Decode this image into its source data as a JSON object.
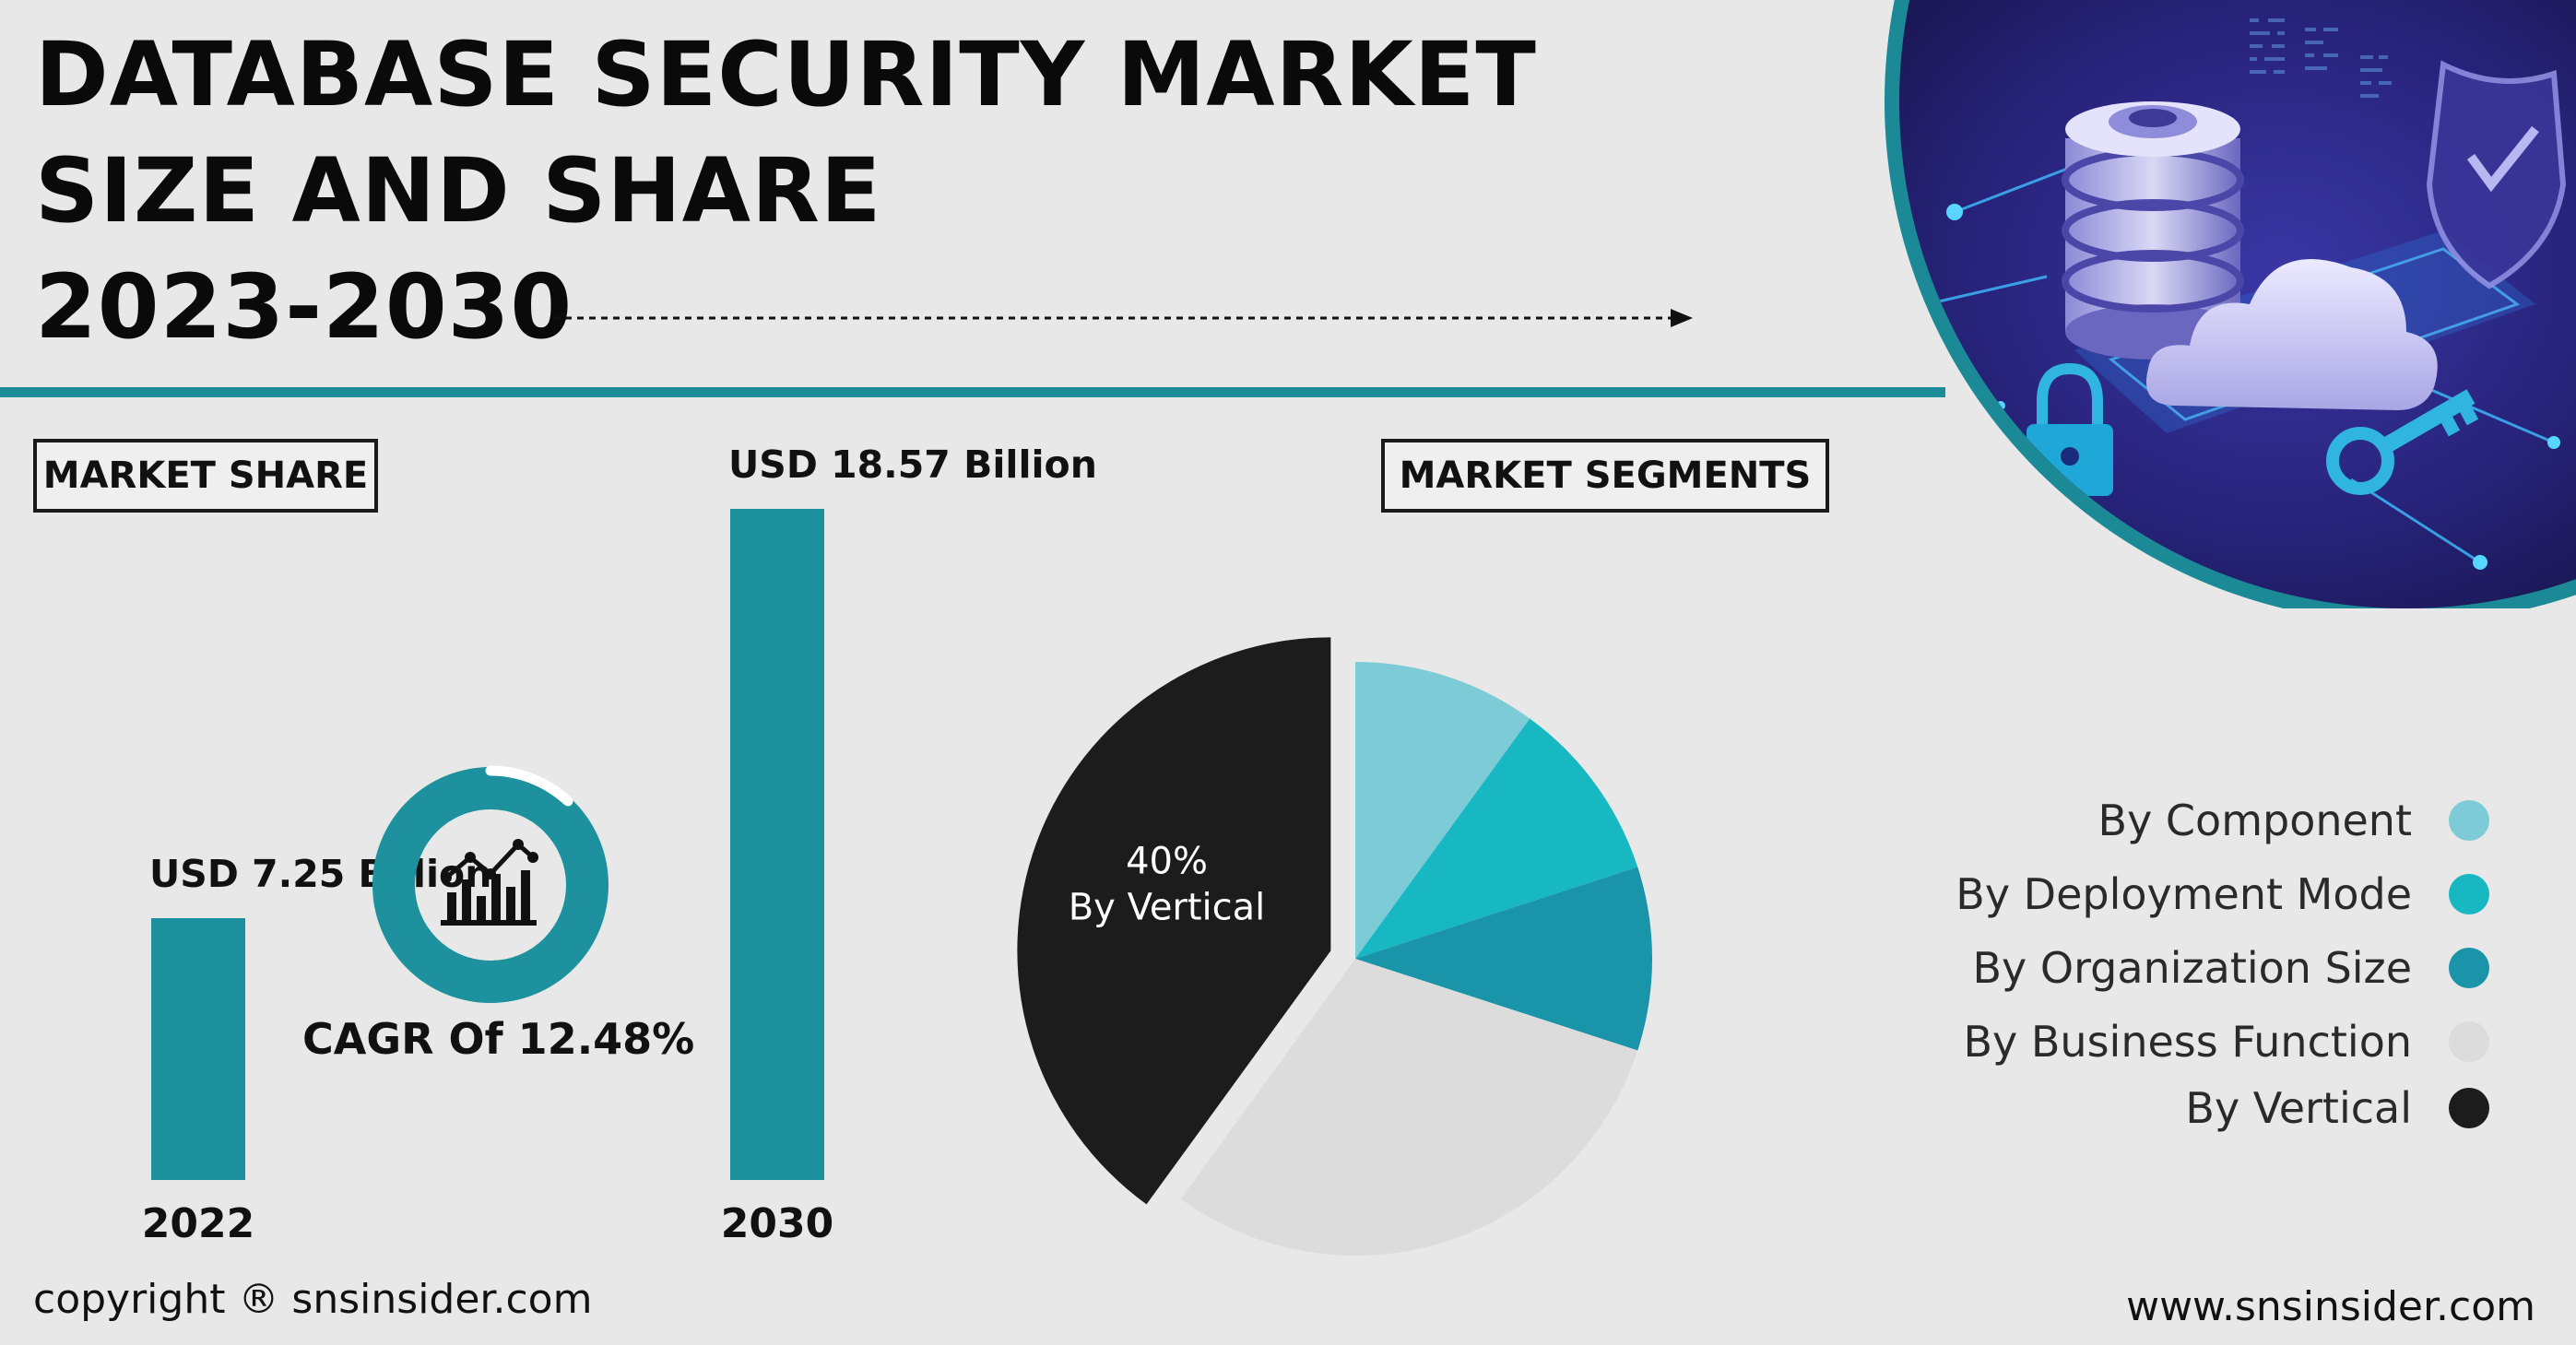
{
  "header": {
    "title_lines": [
      "DATABASE SECURITY MARKET",
      "SIZE AND SHARE",
      "2023-2030"
    ]
  },
  "market_share": {
    "label": "MARKET SHARE",
    "cagr_text": "CAGR Of 12.48%"
  },
  "market_segments": {
    "label": "MARKET SEGMENTS",
    "center_label": {
      "percent": "40%",
      "name": "By Vertical"
    }
  },
  "footer": {
    "copyright": "copyright ® snsinsider.com",
    "website": "www.snsinsider.com"
  },
  "colors": {
    "bar": "#1d929e",
    "accent_rule": "#1d8c99",
    "hero_bg": "#23206e"
  },
  "chart_data": [
    {
      "type": "bar",
      "categories": [
        "2022",
        "2030"
      ],
      "values": [
        7.25,
        18.57
      ],
      "data_labels": [
        "USD 7.25 Billion",
        "USD 18.57 Billion"
      ],
      "unit": "USD Billion",
      "ylim": [
        0,
        18.57
      ]
    },
    {
      "type": "pie",
      "slices": [
        {
          "name": "By Component",
          "value": 10,
          "color": "#7ccbd6",
          "exploded": false
        },
        {
          "name": "By Deployment Mode",
          "value": 10,
          "color": "#17b8c2",
          "exploded": false
        },
        {
          "name": "By Organization Size",
          "value": 10,
          "color": "#1a94a8",
          "exploded": false
        },
        {
          "name": "By Business Function",
          "value": 30,
          "color": "#dcdcdc",
          "exploded": false
        },
        {
          "name": "By Vertical",
          "value": 40,
          "color": "#1c1c1c",
          "exploded": true
        }
      ],
      "legend": "right"
    }
  ]
}
